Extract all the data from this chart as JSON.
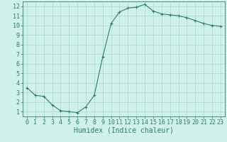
{
  "x": [
    0,
    1,
    2,
    3,
    4,
    5,
    6,
    7,
    8,
    9,
    10,
    11,
    12,
    13,
    14,
    15,
    16,
    17,
    18,
    19,
    20,
    21,
    22,
    23
  ],
  "y": [
    3.5,
    2.7,
    2.6,
    1.7,
    1.1,
    1.0,
    0.9,
    1.5,
    2.7,
    6.7,
    10.2,
    11.4,
    11.8,
    11.9,
    12.2,
    11.5,
    11.2,
    11.1,
    11.0,
    10.8,
    10.5,
    10.2,
    10.0,
    9.9
  ],
  "line_color": "#2e7d6e",
  "marker": "+",
  "marker_size": 3,
  "marker_lw": 0.8,
  "line_width": 0.8,
  "bg_color": "#cff0eb",
  "grid_color": "#a8d8d0",
  "xlabel": "Humidex (Indice chaleur)",
  "xlabel_fontsize": 7,
  "ylabel_ticks": [
    1,
    2,
    3,
    4,
    5,
    6,
    7,
    8,
    9,
    10,
    11,
    12
  ],
  "xlim": [
    -0.5,
    23.5
  ],
  "ylim": [
    0.5,
    12.5
  ],
  "tick_fontsize": 6,
  "axes_color": "#2e7d6e",
  "spine_color": "#2e7d6e"
}
